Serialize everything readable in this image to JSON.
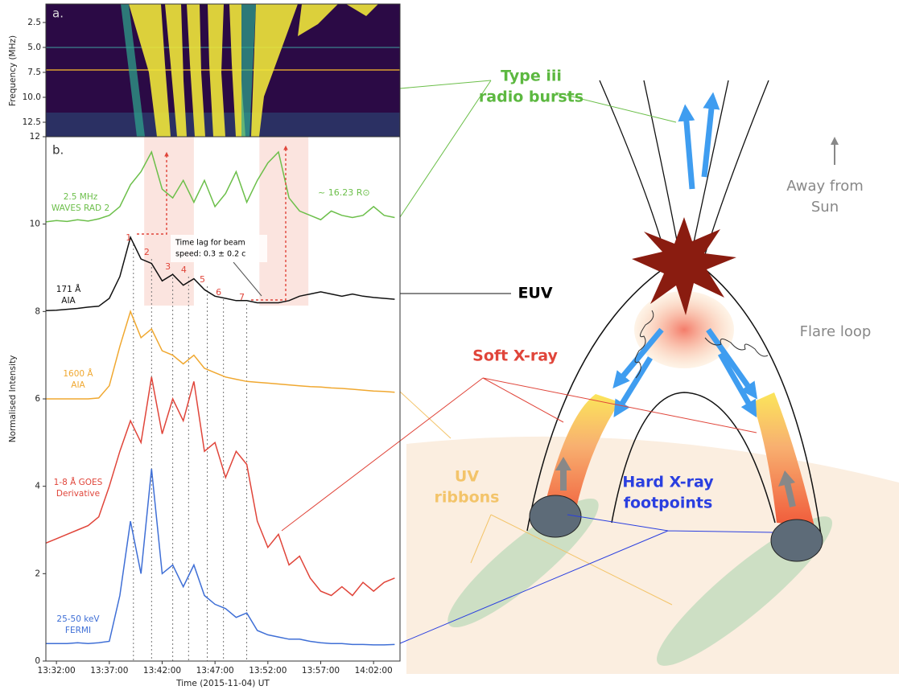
{
  "chart_data": [
    {
      "type": "spectrogram",
      "panel_label": "a.",
      "ylabel": "Frequency (MHz)",
      "ylim": [
        13.95,
        0.65
      ],
      "yticks": [
        2.5,
        {
          "value": 5,
          "label": "5.0"
        },
        7.5,
        {
          "value": 10,
          "label": "10.0"
        },
        12.5
      ]
    },
    {
      "type": "line",
      "panel_label": "b.",
      "ylabel": "Normalised Intensity",
      "xlabel": "Time (2015-11-04) UT",
      "xlim": [
        "13:31:00",
        "14:04:30"
      ],
      "xticks": [
        "13:32:00",
        "13:37:00",
        "13:42:00",
        "13:47:00",
        "13:52:00",
        "13:57:00",
        "14:02:00"
      ],
      "ylim": [
        0,
        12
      ],
      "yticks": [
        0,
        2,
        4,
        6,
        8,
        10,
        12
      ],
      "x": [
        "13:31:00",
        "13:32:00",
        "13:33:00",
        "13:34:00",
        "13:35:00",
        "13:36:00",
        "13:37:00",
        "13:38:00",
        "13:39:00",
        "13:40:00",
        "13:41:00",
        "13:42:00",
        "13:43:00",
        "13:44:00",
        "13:45:00",
        "13:46:00",
        "13:47:00",
        "13:48:00",
        "13:49:00",
        "13:50:00",
        "13:51:00",
        "13:52:00",
        "13:53:00",
        "13:54:00",
        "13:55:00",
        "13:56:00",
        "13:57:00",
        "13:58:00",
        "13:59:00",
        "14:00:00",
        "14:01:00",
        "14:02:00",
        "14:03:00",
        "14:04:00"
      ],
      "series": [
        {
          "label": [
            "2.5 MHz",
            "WAVES RAD 2"
          ],
          "color": "#6cbf4a",
          "values": [
            10.05,
            10.08,
            10.06,
            10.1,
            10.07,
            10.12,
            10.2,
            10.4,
            10.9,
            11.2,
            11.65,
            10.8,
            10.6,
            11.0,
            10.5,
            11.0,
            10.4,
            10.7,
            11.2,
            10.5,
            11.0,
            11.4,
            11.65,
            10.6,
            10.3,
            10.2,
            10.1,
            10.3,
            10.2,
            10.15,
            10.2,
            10.4,
            10.2,
            10.15
          ]
        },
        {
          "label": [
            "171 Å",
            "AIA"
          ],
          "color": "#111111",
          "values": [
            8.02,
            8.03,
            8.05,
            8.07,
            8.1,
            8.12,
            8.3,
            8.8,
            9.7,
            9.2,
            9.1,
            8.7,
            8.85,
            8.6,
            8.75,
            8.5,
            8.35,
            8.3,
            8.25,
            8.25,
            8.2,
            8.2,
            8.2,
            8.25,
            8.35,
            8.4,
            8.45,
            8.4,
            8.35,
            8.4,
            8.35,
            8.32,
            8.3,
            8.28
          ]
        },
        {
          "label": [
            "1600 Å",
            "AIA"
          ],
          "color": "#f0a830",
          "values": [
            6.0,
            6.0,
            6.0,
            6.0,
            6.0,
            6.02,
            6.3,
            7.2,
            8.0,
            7.4,
            7.6,
            7.1,
            7.0,
            6.8,
            7.0,
            6.7,
            6.6,
            6.5,
            6.45,
            6.4,
            6.38,
            6.36,
            6.34,
            6.32,
            6.3,
            6.28,
            6.27,
            6.25,
            6.24,
            6.22,
            6.2,
            6.18,
            6.17,
            6.15
          ]
        },
        {
          "label": [
            "1-8 Å GOES",
            "Derivative"
          ],
          "color": "#e0453a",
          "values": [
            2.7,
            2.8,
            2.9,
            3.0,
            3.1,
            3.3,
            4.0,
            4.8,
            5.5,
            5.0,
            6.5,
            5.2,
            6.0,
            5.5,
            6.4,
            4.8,
            5.0,
            4.2,
            4.8,
            4.5,
            3.2,
            2.6,
            2.9,
            2.2,
            2.4,
            1.9,
            1.6,
            1.5,
            1.7,
            1.5,
            1.8,
            1.6,
            1.8,
            1.9
          ]
        },
        {
          "label": [
            "25-50 keV",
            "FERMI"
          ],
          "color": "#3f6fd6",
          "values": [
            0.4,
            0.4,
            0.4,
            0.42,
            0.4,
            0.42,
            0.45,
            1.5,
            3.2,
            2.0,
            4.4,
            2.0,
            2.2,
            1.7,
            2.2,
            1.5,
            1.3,
            1.2,
            1.0,
            1.1,
            0.7,
            0.6,
            0.55,
            0.5,
            0.5,
            0.45,
            0.42,
            0.4,
            0.4,
            0.38,
            0.38,
            0.37,
            0.37,
            0.38
          ]
        }
      ],
      "peaks": [
        {
          "label": "1",
          "x": "13:39:17"
        },
        {
          "label": "2",
          "x": "13:41:00"
        },
        {
          "label": "3",
          "x": "13:43:00"
        },
        {
          "label": "4",
          "x": "13:44:30"
        },
        {
          "label": "5",
          "x": "13:46:16"
        },
        {
          "label": "6",
          "x": "13:47:48"
        },
        {
          "label": "7",
          "x": "13:50:00"
        }
      ],
      "spans": [
        {
          "x0": "13:40:18",
          "x1": "13:45:00"
        },
        {
          "x0": "13:51:12",
          "x1": "13:55:50"
        }
      ],
      "annotations": {
        "distance": "~ 16.23 R⊙",
        "time_lag": [
          "Time lag for beam",
          "speed: 0.3 ± 0.2 c"
        ]
      }
    }
  ],
  "diagram": {
    "labels": {
      "type_iii": [
        "Type iii",
        "radio bursts"
      ],
      "away": [
        "Away from",
        "Sun"
      ],
      "euv": "EUV",
      "flare_loop": "Flare loop",
      "soft_xray": "Soft X-ray",
      "uv_ribbons": [
        "UV",
        "ribbons"
      ],
      "hard_xray": [
        "Hard X-ray",
        "footpoints"
      ]
    }
  }
}
